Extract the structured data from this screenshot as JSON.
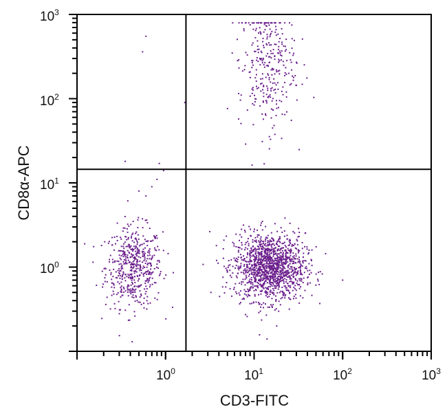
{
  "chart_data": {
    "type": "scatter",
    "title": "",
    "xlabel": "CD3-FITC",
    "ylabel": "CD8α-APC",
    "x_scale": "log",
    "y_scale": "log",
    "xlim": [
      0.1,
      1000
    ],
    "ylim": [
      0.1,
      1000
    ],
    "x_ticks": [
      {
        "base": "10",
        "exp": "0",
        "value": 1
      },
      {
        "base": "10",
        "exp": "1",
        "value": 10
      },
      {
        "base": "10",
        "exp": "2",
        "value": 100
      },
      {
        "base": "10",
        "exp": "3",
        "value": 1000
      }
    ],
    "y_ticks": [
      {
        "base": "10",
        "exp": "0",
        "value": 1
      },
      {
        "base": "10",
        "exp": "1",
        "value": 10
      },
      {
        "base": "10",
        "exp": "2",
        "value": 100
      },
      {
        "base": "10",
        "exp": "3",
        "value": 1000
      }
    ],
    "grid": false,
    "quadrant_gates": {
      "x": 1.7,
      "y": 14.5
    },
    "point_color": "#6b1f8c",
    "populations": [
      {
        "label_quadrant": "lower-left",
        "x_center": 0.44,
        "y_center": 1.0,
        "x_log_sd": 0.16,
        "y_log_sd": 0.24,
        "count": 520
      },
      {
        "label_quadrant": "lower-right",
        "x_center": 15,
        "y_center": 1.0,
        "x_log_sd": 0.2,
        "y_log_sd": 0.2,
        "count": 1400
      },
      {
        "label_quadrant": "upper-right",
        "x_center": 14,
        "y_center": 260,
        "x_log_sd": 0.16,
        "y_log_sd": 0.4,
        "count": 320
      }
    ],
    "sparse_points": [
      {
        "x": 0.6,
        "y": 550
      },
      {
        "x": 0.55,
        "y": 360
      },
      {
        "x": 1.65,
        "y": 90
      },
      {
        "x": 0.35,
        "y": 18
      },
      {
        "x": 0.85,
        "y": 17
      },
      {
        "x": 0.95,
        "y": 14
      },
      {
        "x": 0.8,
        "y": 11
      },
      {
        "x": 0.7,
        "y": 9
      },
      {
        "x": 0.6,
        "y": 7
      },
      {
        "x": 0.5,
        "y": 8
      },
      {
        "x": 100,
        "y": 0.7
      },
      {
        "x": 0.42,
        "y": 0.13
      },
      {
        "x": 14,
        "y": 0.14
      },
      {
        "x": 18,
        "y": 0.2
      }
    ]
  }
}
